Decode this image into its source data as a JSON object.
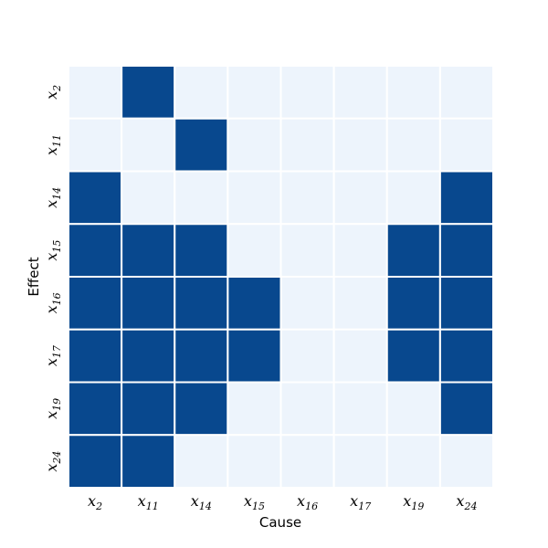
{
  "chart_data": {
    "type": "heatmap",
    "xlabel": "Cause",
    "ylabel": "Effect",
    "x_categories": [
      {
        "base": "x",
        "sub": "2"
      },
      {
        "base": "x",
        "sub": "11"
      },
      {
        "base": "x",
        "sub": "14"
      },
      {
        "base": "x",
        "sub": "15"
      },
      {
        "base": "x",
        "sub": "16"
      },
      {
        "base": "x",
        "sub": "17"
      },
      {
        "base": "x",
        "sub": "19"
      },
      {
        "base": "x",
        "sub": "24"
      }
    ],
    "y_categories": [
      {
        "base": "x",
        "sub": "2"
      },
      {
        "base": "x",
        "sub": "11"
      },
      {
        "base": "x",
        "sub": "14"
      },
      {
        "base": "x",
        "sub": "15"
      },
      {
        "base": "x",
        "sub": "16"
      },
      {
        "base": "x",
        "sub": "17"
      },
      {
        "base": "x",
        "sub": "19"
      },
      {
        "base": "x",
        "sub": "24"
      }
    ],
    "matrix": [
      [
        0,
        1,
        0,
        0,
        0,
        0,
        0,
        0
      ],
      [
        0,
        0,
        1,
        0,
        0,
        0,
        0,
        0
      ],
      [
        1,
        0,
        0,
        0,
        0,
        0,
        0,
        1
      ],
      [
        1,
        1,
        1,
        0,
        0,
        0,
        1,
        1
      ],
      [
        1,
        1,
        1,
        1,
        0,
        0,
        1,
        1
      ],
      [
        1,
        1,
        1,
        1,
        0,
        0,
        1,
        1
      ],
      [
        1,
        1,
        1,
        0,
        0,
        0,
        0,
        1
      ],
      [
        1,
        1,
        0,
        0,
        0,
        0,
        0,
        0
      ]
    ],
    "colors": {
      "on": "#08488e",
      "off": "#edf4fc",
      "grid": "#ffffff"
    },
    "legend": false,
    "colorbar": false
  }
}
